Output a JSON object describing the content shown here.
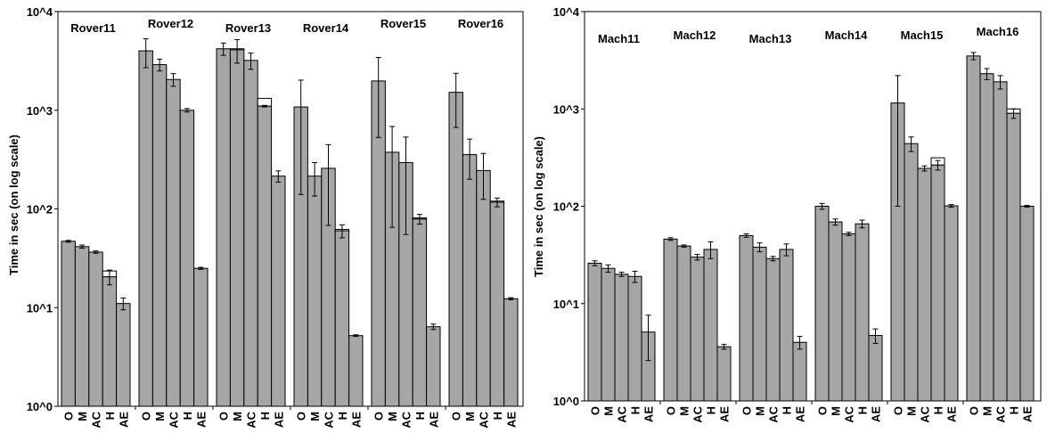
{
  "chart_data": [
    {
      "type": "bar",
      "ylabel": "Time in sec (on log scale)",
      "yscale": "log",
      "ylim": [
        1,
        10000
      ],
      "ytick_labels": [
        "10^0",
        "10^1",
        "10^2",
        "10^3",
        "10^4"
      ],
      "categories": [
        "O",
        "M",
        "AC",
        "H",
        "AE"
      ],
      "bar_color": "#a6a6a6",
      "overlay_color": "#ffffff",
      "grid": false,
      "groups": [
        {
          "name": "Rover11",
          "values": [
            47,
            41.5,
            36.5,
            20.5,
            11
          ],
          "errors": [
            1,
            1.5,
            1,
            3.5,
            1.5
          ],
          "overlay": [
            null,
            null,
            null,
            23.5,
            null
          ]
        },
        {
          "name": "Rover12",
          "values": [
            4000,
            2900,
            2050,
            1000,
            25
          ],
          "errors": [
            1300,
            400,
            300,
            40,
            0.6
          ],
          "overlay": [
            null,
            null,
            null,
            null,
            null
          ]
        },
        {
          "name": "Rover13",
          "values": [
            4200,
            4100,
            3200,
            1100,
            215
          ],
          "errors": [
            600,
            1100,
            600,
            20,
            28
          ],
          "overlay": [
            null,
            4200,
            null,
            1320,
            null
          ]
        },
        {
          "name": "Rover14",
          "values": [
            1080,
            215,
            258,
            60,
            5.2
          ],
          "errors": [
            940,
            80,
            190,
            9,
            0.1
          ],
          "overlay": [
            null,
            null,
            null,
            62,
            null
          ]
        },
        {
          "name": "Rover15",
          "values": [
            1980,
            375,
            295,
            79,
            6.4
          ],
          "errors": [
            1450,
            310,
            240,
            9,
            0.4
          ],
          "overlay": [
            null,
            null,
            null,
            81,
            null
          ]
        },
        {
          "name": "Rover16",
          "values": [
            1520,
            355,
            245,
            117,
            12.3
          ],
          "errors": [
            850,
            155,
            120,
            12,
            0.3
          ],
          "overlay": [
            null,
            null,
            null,
            120,
            null
          ]
        }
      ]
    },
    {
      "type": "bar",
      "ylabel": "Time in sec (on log scale)",
      "yscale": "log",
      "ylim": [
        1,
        10000
      ],
      "ytick_labels": [
        "10^0",
        "10^1",
        "10^2",
        "10^3",
        "10^4"
      ],
      "categories": [
        "O",
        "M",
        "AC",
        "H",
        "AE"
      ],
      "bar_color": "#a6a6a6",
      "overlay_color": "#ffffff",
      "grid": false,
      "groups": [
        {
          "name": "Mach11",
          "values": [
            26,
            23,
            20,
            19,
            5.1
          ],
          "errors": [
            1.5,
            2,
            1,
            2.5,
            2.5
          ],
          "overlay": [
            null,
            null,
            null,
            null,
            null
          ]
        },
        {
          "name": "Mach12",
          "values": [
            46,
            39,
            30,
            36,
            3.6
          ],
          "errors": [
            1.5,
            1,
            2,
            7,
            0.2
          ],
          "overlay": [
            null,
            null,
            null,
            null,
            null
          ]
        },
        {
          "name": "Mach13",
          "values": [
            50,
            38,
            29,
            36,
            4
          ],
          "errors": [
            2,
            4,
            1.5,
            5,
            0.6
          ],
          "overlay": [
            null,
            null,
            null,
            null,
            null
          ]
        },
        {
          "name": "Mach14",
          "values": [
            100,
            69,
            52,
            66,
            4.7
          ],
          "errors": [
            7,
            5,
            2,
            6,
            0.8
          ],
          "overlay": [
            null,
            null,
            null,
            null,
            null
          ]
        },
        {
          "name": "Mach15",
          "values": [
            1150,
            440,
            245,
            265,
            101
          ],
          "errors": [
            1050,
            75,
            15,
            30,
            3
          ],
          "overlay": [
            null,
            null,
            null,
            315,
            null
          ]
        },
        {
          "name": "Mach16",
          "values": [
            3500,
            2300,
            1900,
            900,
            100
          ],
          "errors": [
            300,
            300,
            300,
            100,
            2
          ],
          "overlay": [
            null,
            null,
            null,
            1000,
            null
          ]
        }
      ]
    }
  ]
}
